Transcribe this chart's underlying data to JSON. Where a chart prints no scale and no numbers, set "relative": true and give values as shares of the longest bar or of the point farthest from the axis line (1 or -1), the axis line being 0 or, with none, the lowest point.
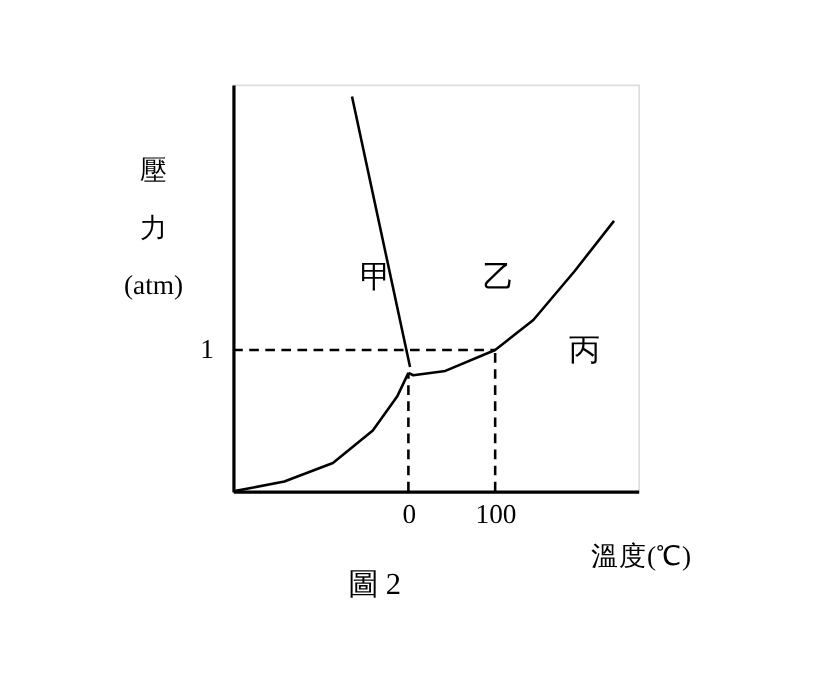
{
  "chart_data": {
    "type": "line",
    "xlabel": "溫度(℃)",
    "ylabel": "壓力(atm)",
    "relative": true,
    "xlim": [
      -202,
      265
    ],
    "xticks": [
      0,
      100
    ],
    "grid": false,
    "legend": false,
    "marker": "none",
    "series": [
      {
        "color": "#000000",
        "line_style": "solid",
        "x": [
          -202,
          -143,
          -87,
          -41,
          -13,
          0
        ],
        "values": [
          0,
          0.025,
          0.072,
          0.154,
          0.24,
          0.3
        ]
      },
      {
        "color": "#000000",
        "line_style": "solid",
        "x": [
          0,
          5.6,
          42.6,
          100,
          144,
          191,
          237
        ],
        "values": [
          0.3,
          0.294,
          0.305,
          0.358,
          0.434,
          0.556,
          0.685
        ]
      },
      {
        "color": "#000000",
        "line_style": "solid",
        "x": [
          -65,
          1.9
        ],
        "values": [
          1.0,
          0.315
        ]
      },
      {
        "color": "#000000",
        "line_style": "dashed",
        "x": [
          -202,
          100
        ],
        "values": [
          0.358,
          0.358
        ]
      },
      {
        "color": "#000000",
        "line_style": "dashed",
        "x": [
          0,
          0
        ],
        "values": [
          0,
          0.3
        ]
      },
      {
        "color": "#000000",
        "line_style": "dashed",
        "x": [
          100,
          100
        ],
        "values": [
          0,
          0.358
        ]
      }
    ],
    "annotations": [
      "1",
      "甲",
      "乙",
      "丙",
      "圖 2"
    ]
  }
}
